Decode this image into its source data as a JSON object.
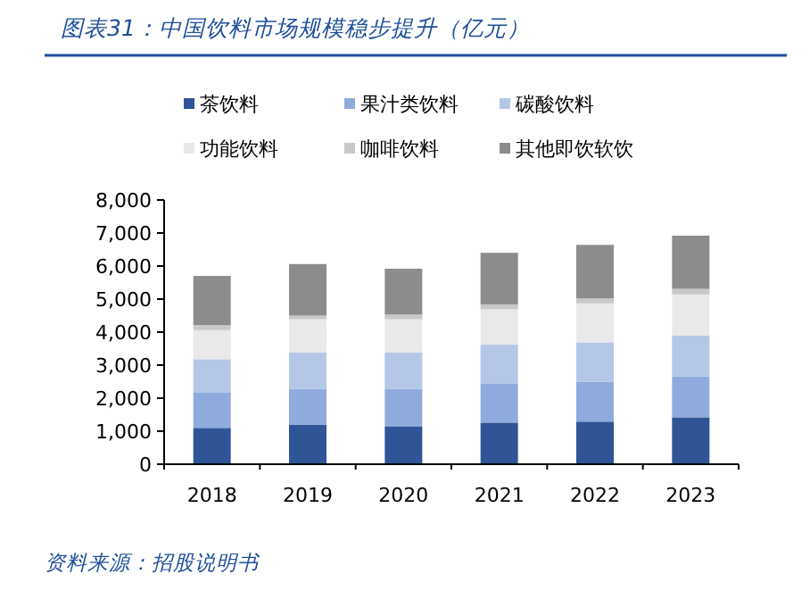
{
  "chart_data": {
    "type": "bar",
    "stacked": true,
    "title": "图表31：中国饮料市场规模稳步提升（亿元）",
    "categories": [
      "2018",
      "2019",
      "2020",
      "2021",
      "2022",
      "2023"
    ],
    "series": [
      {
        "name": "茶饮料",
        "color": "#2f5597",
        "values": [
          1100,
          1190,
          1150,
          1260,
          1290,
          1420
        ]
      },
      {
        "name": "果汁类饮料",
        "color": "#8faadc",
        "values": [
          1080,
          1090,
          1130,
          1190,
          1210,
          1240
        ]
      },
      {
        "name": "碳酸饮料",
        "color": "#b4c7e7",
        "values": [
          1000,
          1100,
          1100,
          1170,
          1190,
          1240
        ]
      },
      {
        "name": "功能饮料",
        "color": "#e9e9e9",
        "values": [
          880,
          1010,
          1010,
          1070,
          1180,
          1240
        ]
      },
      {
        "name": "咖啡饮料",
        "color": "#c8c8c8",
        "values": [
          150,
          110,
          140,
          150,
          150,
          170
        ]
      },
      {
        "name": "其他即饮软饮",
        "color": "#8c8c8c",
        "values": [
          1490,
          1560,
          1390,
          1560,
          1620,
          1610
        ]
      }
    ],
    "ylim": [
      0,
      8000
    ],
    "yticks": [
      {
        "value": 0,
        "label": "0"
      },
      {
        "value": 1000,
        "label": "1,000"
      },
      {
        "value": 2000,
        "label": "2,000"
      },
      {
        "value": 3000,
        "label": "3,000"
      },
      {
        "value": 4000,
        "label": "4,000"
      },
      {
        "value": 5000,
        "label": "5,000"
      },
      {
        "value": 6000,
        "label": "6,000"
      },
      {
        "value": 7000,
        "label": "7,000"
      },
      {
        "value": 8000,
        "label": "8,000"
      }
    ],
    "grid": false,
    "legend": "top",
    "annotations": [
      "资料来源：招股说明书"
    ]
  }
}
